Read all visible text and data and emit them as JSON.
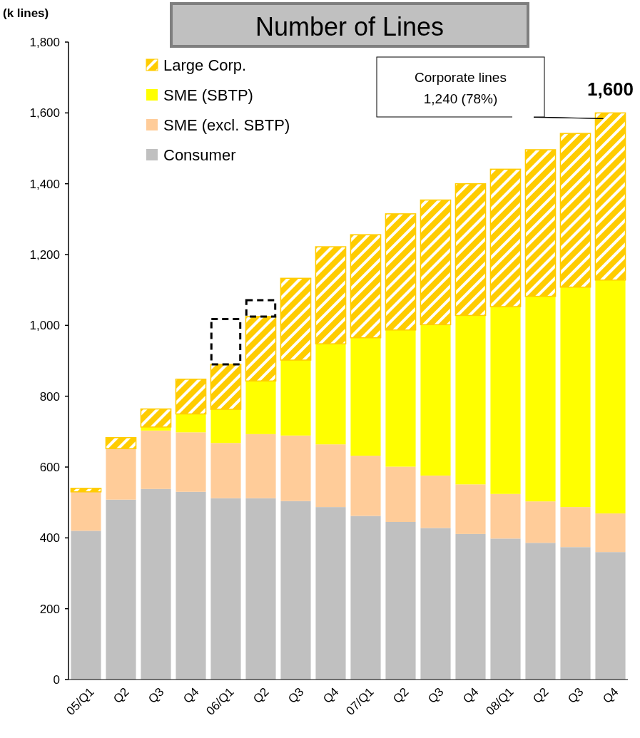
{
  "chart_data": {
    "type": "bar",
    "title": "Number of Lines",
    "ylabel": "(k lines)",
    "stacked": true,
    "legend": "top left",
    "grid": false,
    "categories": [
      "05/Q1",
      "Q2",
      "Q3",
      "Q4",
      "06/Q1",
      "Q2",
      "Q3",
      "Q4",
      "07/Q1",
      "Q2",
      "Q3",
      "Q4",
      "08/Q1",
      "Q2",
      "Q3",
      "Q4"
    ],
    "ylim": [
      0,
      1800
    ],
    "yticks": [
      0,
      {
        "value": 200,
        "label": "200"
      },
      {
        "value": 400,
        "label": "400"
      },
      {
        "value": 600,
        "label": "600"
      },
      {
        "value": 800,
        "label": "800"
      },
      {
        "value": 1000,
        "label": "1,000"
      },
      {
        "value": 1200,
        "label": "1,200"
      },
      {
        "value": 1400,
        "label": "1,400"
      },
      {
        "value": 1600,
        "label": "1,600"
      },
      {
        "value": 1800,
        "label": "1,800"
      }
    ],
    "series": [
      {
        "name": "Consumer",
        "color": "#c0c0c0",
        "values": [
          420,
          508,
          538,
          530,
          512,
          512,
          504,
          487,
          462,
          445,
          428,
          411,
          398,
          386,
          374,
          360
        ]
      },
      {
        "name": "SME (excl. SBTP)",
        "color": "#ffcc99",
        "values": [
          110,
          144,
          165,
          168,
          156,
          181,
          185,
          177,
          170,
          156,
          148,
          140,
          126,
          117,
          113,
          109
        ]
      },
      {
        "name": "SME (SBTP)",
        "color": "#ffff00",
        "values": [
          0,
          0,
          10,
          52,
          95,
          150,
          213,
          284,
          333,
          386,
          426,
          477,
          529,
          579,
          621,
          659
        ]
      },
      {
        "name": "Large Corp.",
        "color": "#ffcc00",
        "values": [
          10,
          31,
          51,
          98,
          127,
          182,
          231,
          274,
          291,
          328,
          352,
          372,
          388,
          414,
          434,
          472
        ]
      },
      {
        "color": "#000000",
        "line_style": "dashed",
        "values": [
          null,
          null,
          null,
          null,
          128,
          46,
          null,
          null,
          null,
          null,
          null,
          null,
          null,
          null,
          null,
          null
        ]
      }
    ],
    "totals": [
      null,
      null,
      null,
      null,
      null,
      null,
      null,
      null,
      null,
      null,
      null,
      null,
      null,
      null,
      null,
      "1,600"
    ],
    "annotations": [
      "Corporate lines\n1,240 (78%)"
    ]
  }
}
